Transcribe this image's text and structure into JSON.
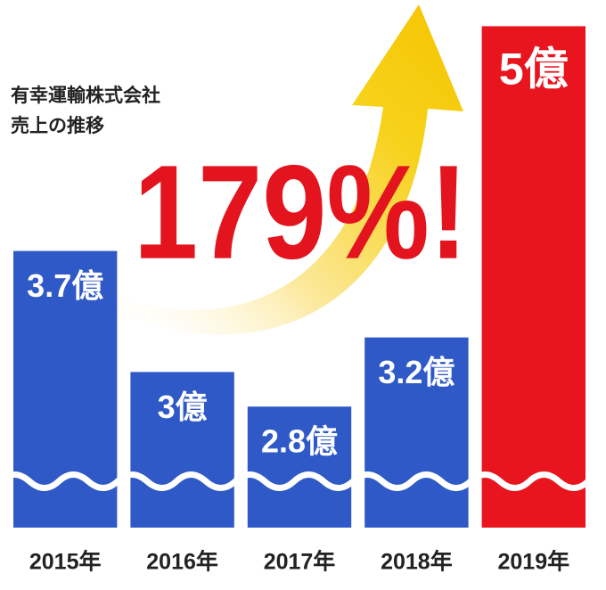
{
  "chart_data": {
    "type": "bar",
    "title": "有幸運輸株式会社",
    "subtitle": "売上の推移",
    "annotation": "179%!",
    "categories": [
      "2015年",
      "2016年",
      "2017年",
      "2018年",
      "2019年"
    ],
    "values": [
      3.7,
      3,
      2.8,
      3.2,
      5
    ],
    "value_labels": [
      "3.7億",
      "3億",
      "2.8億",
      "3.2億",
      "5億"
    ],
    "colors": [
      "#2e59c6",
      "#2e59c6",
      "#2e59c6",
      "#2e59c6",
      "#e8141e"
    ],
    "ylim": [
      2.1,
      5.1
    ]
  }
}
